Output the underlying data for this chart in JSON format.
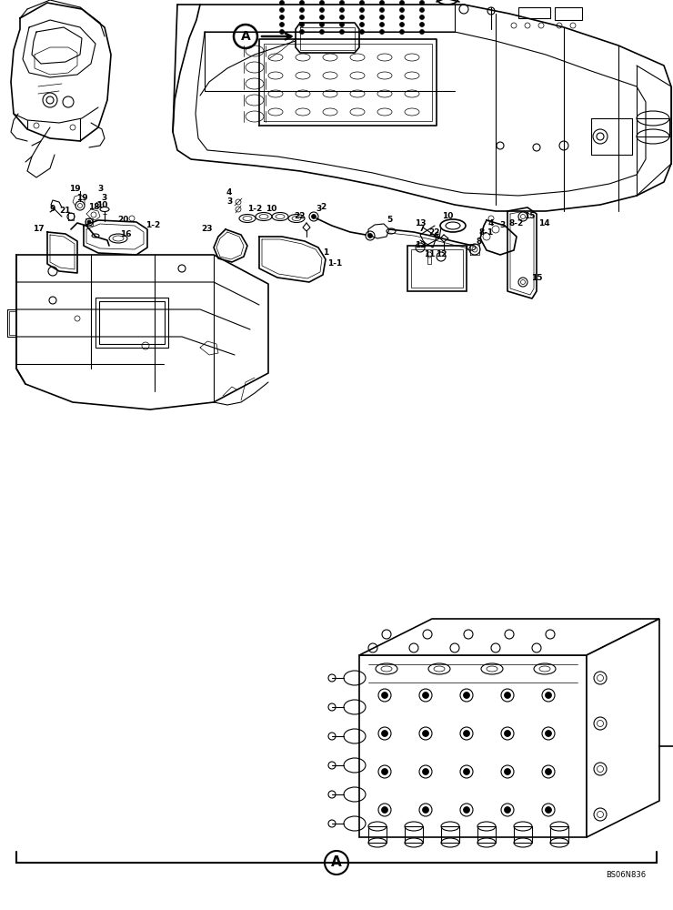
{
  "background_color": "#ffffff",
  "bottom_label": "A",
  "bottom_ref": "BS06N836",
  "fig_width": 7.4,
  "fig_height": 10.0,
  "dpi": 100
}
